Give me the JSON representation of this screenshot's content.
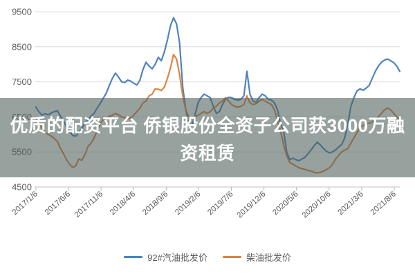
{
  "overlay": {
    "full_text": "优质的配资平台 侨银股份全资子公司获3000万融资租赁",
    "line1": "优质的配资平台 侨银股份全资子公司获3000万融",
    "line2": "资租赁",
    "background": "rgba(76,94,89,0.58)",
    "text_color": "#ffffff"
  },
  "colors": {
    "gasoline_line": "#4e83bf",
    "diesel_line": "#dd8440",
    "gridline": "#dcdcdc",
    "axis_line": "#c2c2c2",
    "tick": "#b8b8b8",
    "axis_text": "#595959",
    "background": "#ffffff"
  },
  "chart_data": {
    "type": "line",
    "title": "",
    "xlabel": "",
    "ylabel": "",
    "grid": "horizontal",
    "legend_position": "bottom",
    "ylim": [
      4500,
      9500
    ],
    "y_ticks": [
      9500,
      8500,
      7500,
      6500,
      5500,
      4500
    ],
    "x_tick_labels": [
      "2017/1/6",
      "2017/6/6",
      "2017/11/6",
      "2018/4/6",
      "2018/9/6",
      "2019/2/6",
      "2019/7/6",
      "2019/12/6",
      "2020/5/6",
      "2020/10/6",
      "2021/3/6",
      "2021/8/6"
    ],
    "x_range_note": "weekly wholesale price series, ~biweekly samples 2017/1/6 - 2021/8",
    "unit": "yuan/ton",
    "series": [
      {
        "name": "92#汽油批发价",
        "color": "#4e83bf",
        "values": [
          6780,
          6640,
          6550,
          6590,
          6560,
          6610,
          6650,
          6680,
          6520,
          6380,
          6220,
          6080,
          5970,
          5950,
          6050,
          6180,
          6320,
          6400,
          6520,
          6600,
          6750,
          6880,
          7030,
          7180,
          7400,
          7600,
          7750,
          7640,
          7500,
          7480,
          7550,
          7520,
          7460,
          7410,
          7550,
          7850,
          8060,
          7950,
          7870,
          8000,
          8200,
          8100,
          8350,
          8700,
          9100,
          9330,
          9150,
          8600,
          7350,
          6700,
          6300,
          6250,
          6550,
          6900,
          7050,
          7150,
          7100,
          7050,
          6800,
          6600,
          6650,
          6850,
          7010,
          7060,
          7050,
          7000,
          6980,
          7000,
          7100,
          7800,
          7150,
          6950,
          6920,
          7050,
          7150,
          7100,
          7000,
          6980,
          6900,
          6700,
          6300,
          6100,
          5500,
          5280,
          5320,
          5280,
          5250,
          5300,
          5350,
          5450,
          5560,
          5680,
          5780,
          5700,
          5600,
          5520,
          5470,
          5500,
          5560,
          5640,
          5710,
          5900,
          6300,
          6800,
          7050,
          7240,
          7300,
          7260,
          7320,
          7400,
          7600,
          7800,
          7950,
          8060,
          8120,
          8150,
          8100,
          8050,
          7950,
          7800
        ]
      },
      {
        "name": "柴油批发价",
        "color": "#dd8440",
        "values": [
          6480,
          6330,
          6180,
          6060,
          6000,
          5950,
          5880,
          5800,
          5600,
          5450,
          5280,
          5150,
          5060,
          5100,
          5300,
          5260,
          5420,
          5650,
          5750,
          5900,
          6100,
          6300,
          6420,
          6450,
          6520,
          6550,
          6600,
          6560,
          6500,
          6480,
          6450,
          6470,
          6550,
          6650,
          6750,
          6900,
          6950,
          7100,
          7150,
          7300,
          7290,
          7250,
          7350,
          7600,
          7900,
          8280,
          8150,
          7700,
          7100,
          6700,
          6500,
          6450,
          6500,
          6550,
          6600,
          6650,
          6600,
          6650,
          6750,
          6800,
          6900,
          6950,
          7050,
          6950,
          6850,
          6800,
          6780,
          6800,
          6850,
          7100,
          6900,
          6850,
          6880,
          6950,
          7000,
          6950,
          6900,
          6850,
          6700,
          6400,
          6100,
          5700,
          5400,
          5200,
          5150,
          5100,
          5050,
          5020,
          5000,
          4970,
          4950,
          4920,
          4900,
          4920,
          4950,
          5000,
          5050,
          5150,
          5300,
          5400,
          5500,
          5550,
          5600,
          5750,
          5900,
          6050,
          6200,
          6250,
          6300,
          6320,
          6350,
          6420,
          6500,
          6600,
          6700,
          6750,
          6700,
          6600,
          6500,
          6430
        ]
      }
    ]
  }
}
